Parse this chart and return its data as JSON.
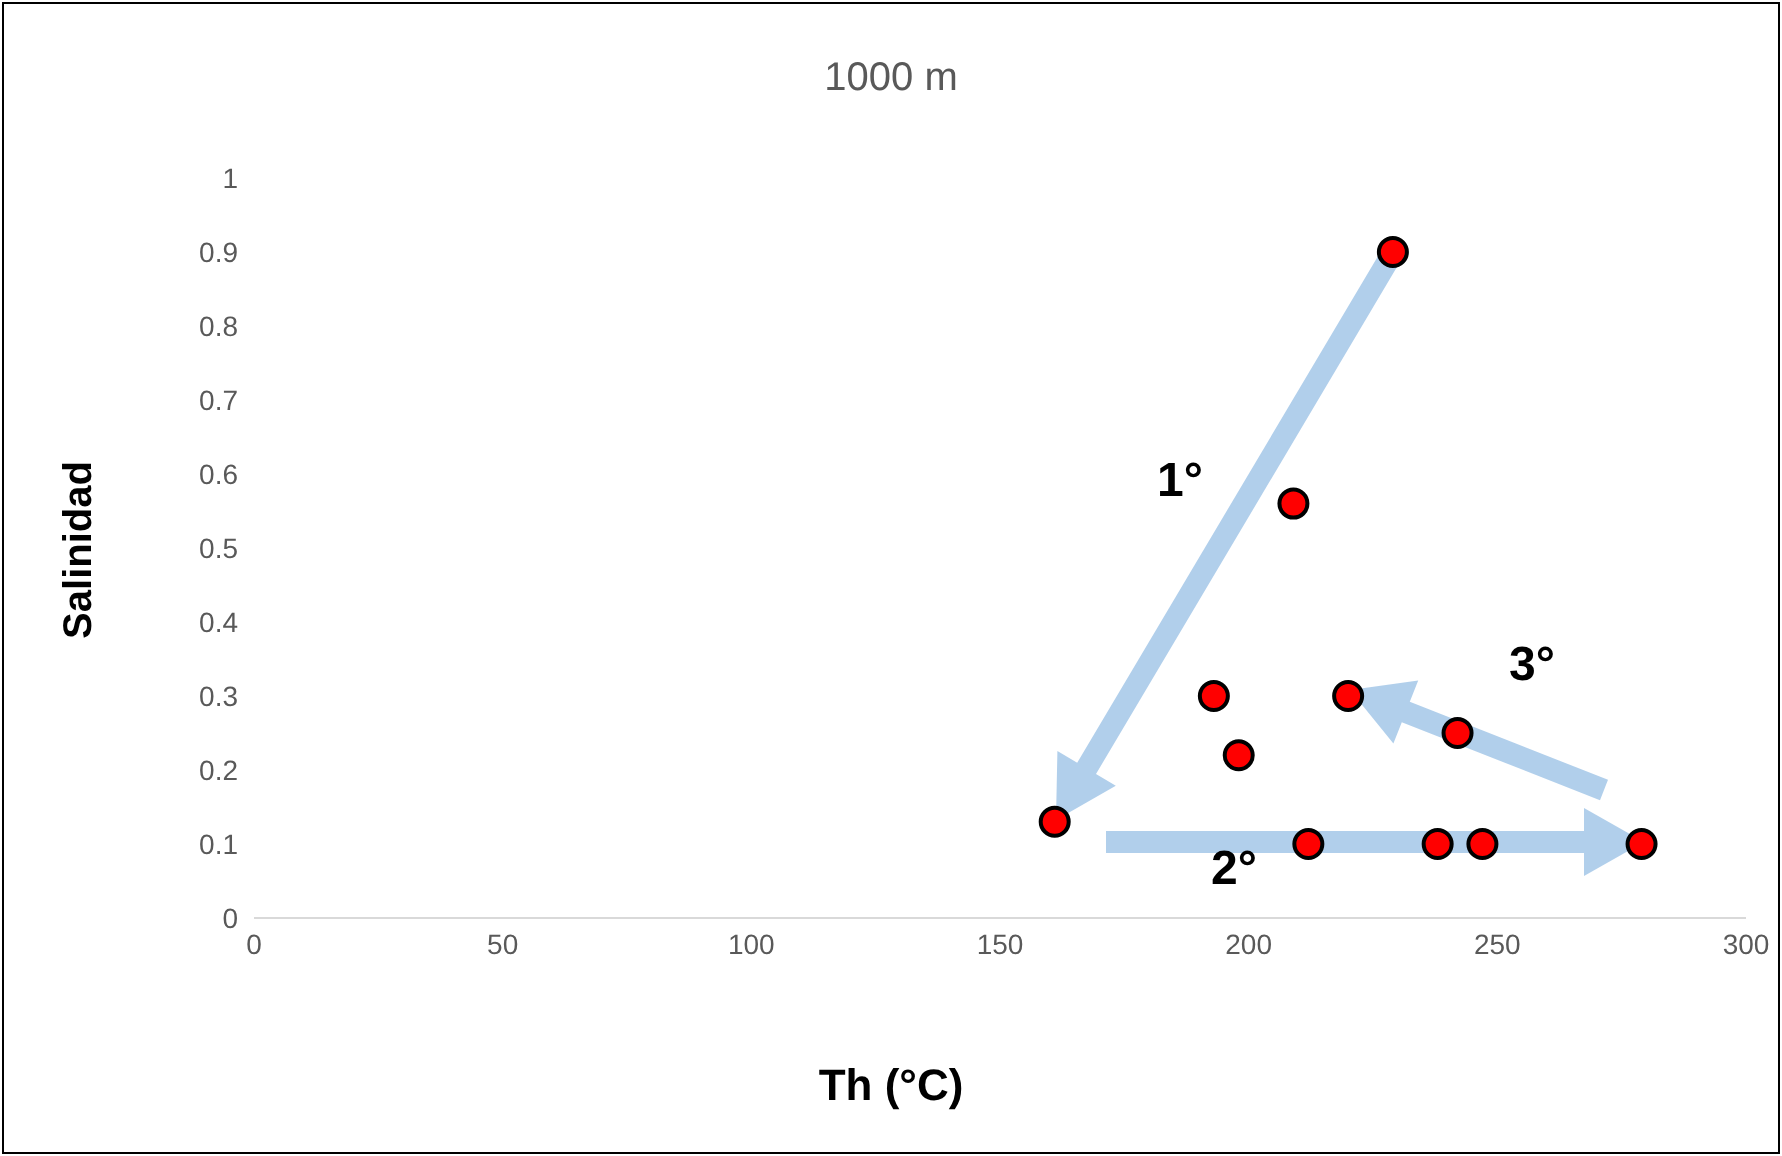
{
  "chart_data": {
    "type": "scatter",
    "title": "1000 m",
    "xlabel": "Th (°C)",
    "ylabel": "Salinidad",
    "x": [
      229,
      209,
      161,
      193,
      198,
      220,
      242,
      212,
      238,
      247,
      279
    ],
    "values": [
      0.9,
      0.56,
      0.13,
      0.3,
      0.22,
      0.3,
      0.25,
      0.1,
      0.1,
      0.1,
      0.1
    ],
    "color": "#ff0000",
    "marker": "circle",
    "xlim": [
      0,
      300
    ],
    "xticks": [
      0,
      50,
      100,
      150,
      200,
      250,
      300
    ],
    "ylim": [
      0,
      1
    ],
    "yticks": [
      0,
      0.1,
      0.2,
      0.3,
      0.4,
      0.5,
      0.6,
      0.7,
      0.8,
      0.9,
      1
    ],
    "grid": false,
    "legend": false,
    "annotations": [
      "1°",
      "2°",
      "3°"
    ]
  }
}
